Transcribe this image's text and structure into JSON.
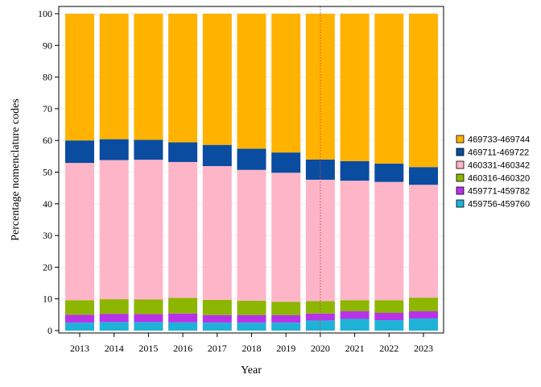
{
  "chart_data": {
    "type": "bar",
    "stacked": true,
    "xlabel": "Year",
    "ylabel": "Percentage nomenclature codes",
    "ylim": [
      0,
      100
    ],
    "yticks": [
      0,
      10,
      20,
      30,
      40,
      50,
      60,
      70,
      80,
      90,
      100
    ],
    "grid": true,
    "legend_position": "right",
    "reference_line": {
      "x": "2020",
      "style": "dotted",
      "color": "#c0504d"
    },
    "categories": [
      "2013",
      "2014",
      "2015",
      "2016",
      "2017",
      "2018",
      "2019",
      "2020",
      "2021",
      "2022",
      "2023"
    ],
    "series": [
      {
        "name": "459756-459760",
        "color": "#1fb2d7",
        "values": [
          2.5,
          2.7,
          2.7,
          2.6,
          2.5,
          2.5,
          2.5,
          3.2,
          3.7,
          3.3,
          3.8
        ]
      },
      {
        "name": "459771-459782",
        "color": "#b833e8",
        "values": [
          2.5,
          2.6,
          2.5,
          2.8,
          2.4,
          2.4,
          2.4,
          2.2,
          2.4,
          2.3,
          2.3
        ]
      },
      {
        "name": "460316-460320",
        "color": "#8db600",
        "values": [
          4.6,
          4.6,
          4.6,
          4.9,
          4.8,
          4.5,
          4.2,
          3.9,
          3.5,
          4.0,
          4.3
        ]
      },
      {
        "name": "460331-460342",
        "color": "#ffb5c8",
        "values": [
          43.3,
          43.9,
          44.1,
          42.9,
          42.2,
          41.3,
          40.7,
          38.3,
          37.7,
          37.3,
          35.6
        ]
      },
      {
        "name": "469711-469722",
        "color": "#0a4ca0",
        "values": [
          7.1,
          6.6,
          6.3,
          6.2,
          6.7,
          6.7,
          6.4,
          6.4,
          6.2,
          5.8,
          5.6
        ]
      },
      {
        "name": "469733-469744",
        "color": "#ffb300",
        "values": [
          40.0,
          39.6,
          39.8,
          40.6,
          41.4,
          42.6,
          43.8,
          46.0,
          46.5,
          47.3,
          48.4
        ]
      }
    ]
  }
}
